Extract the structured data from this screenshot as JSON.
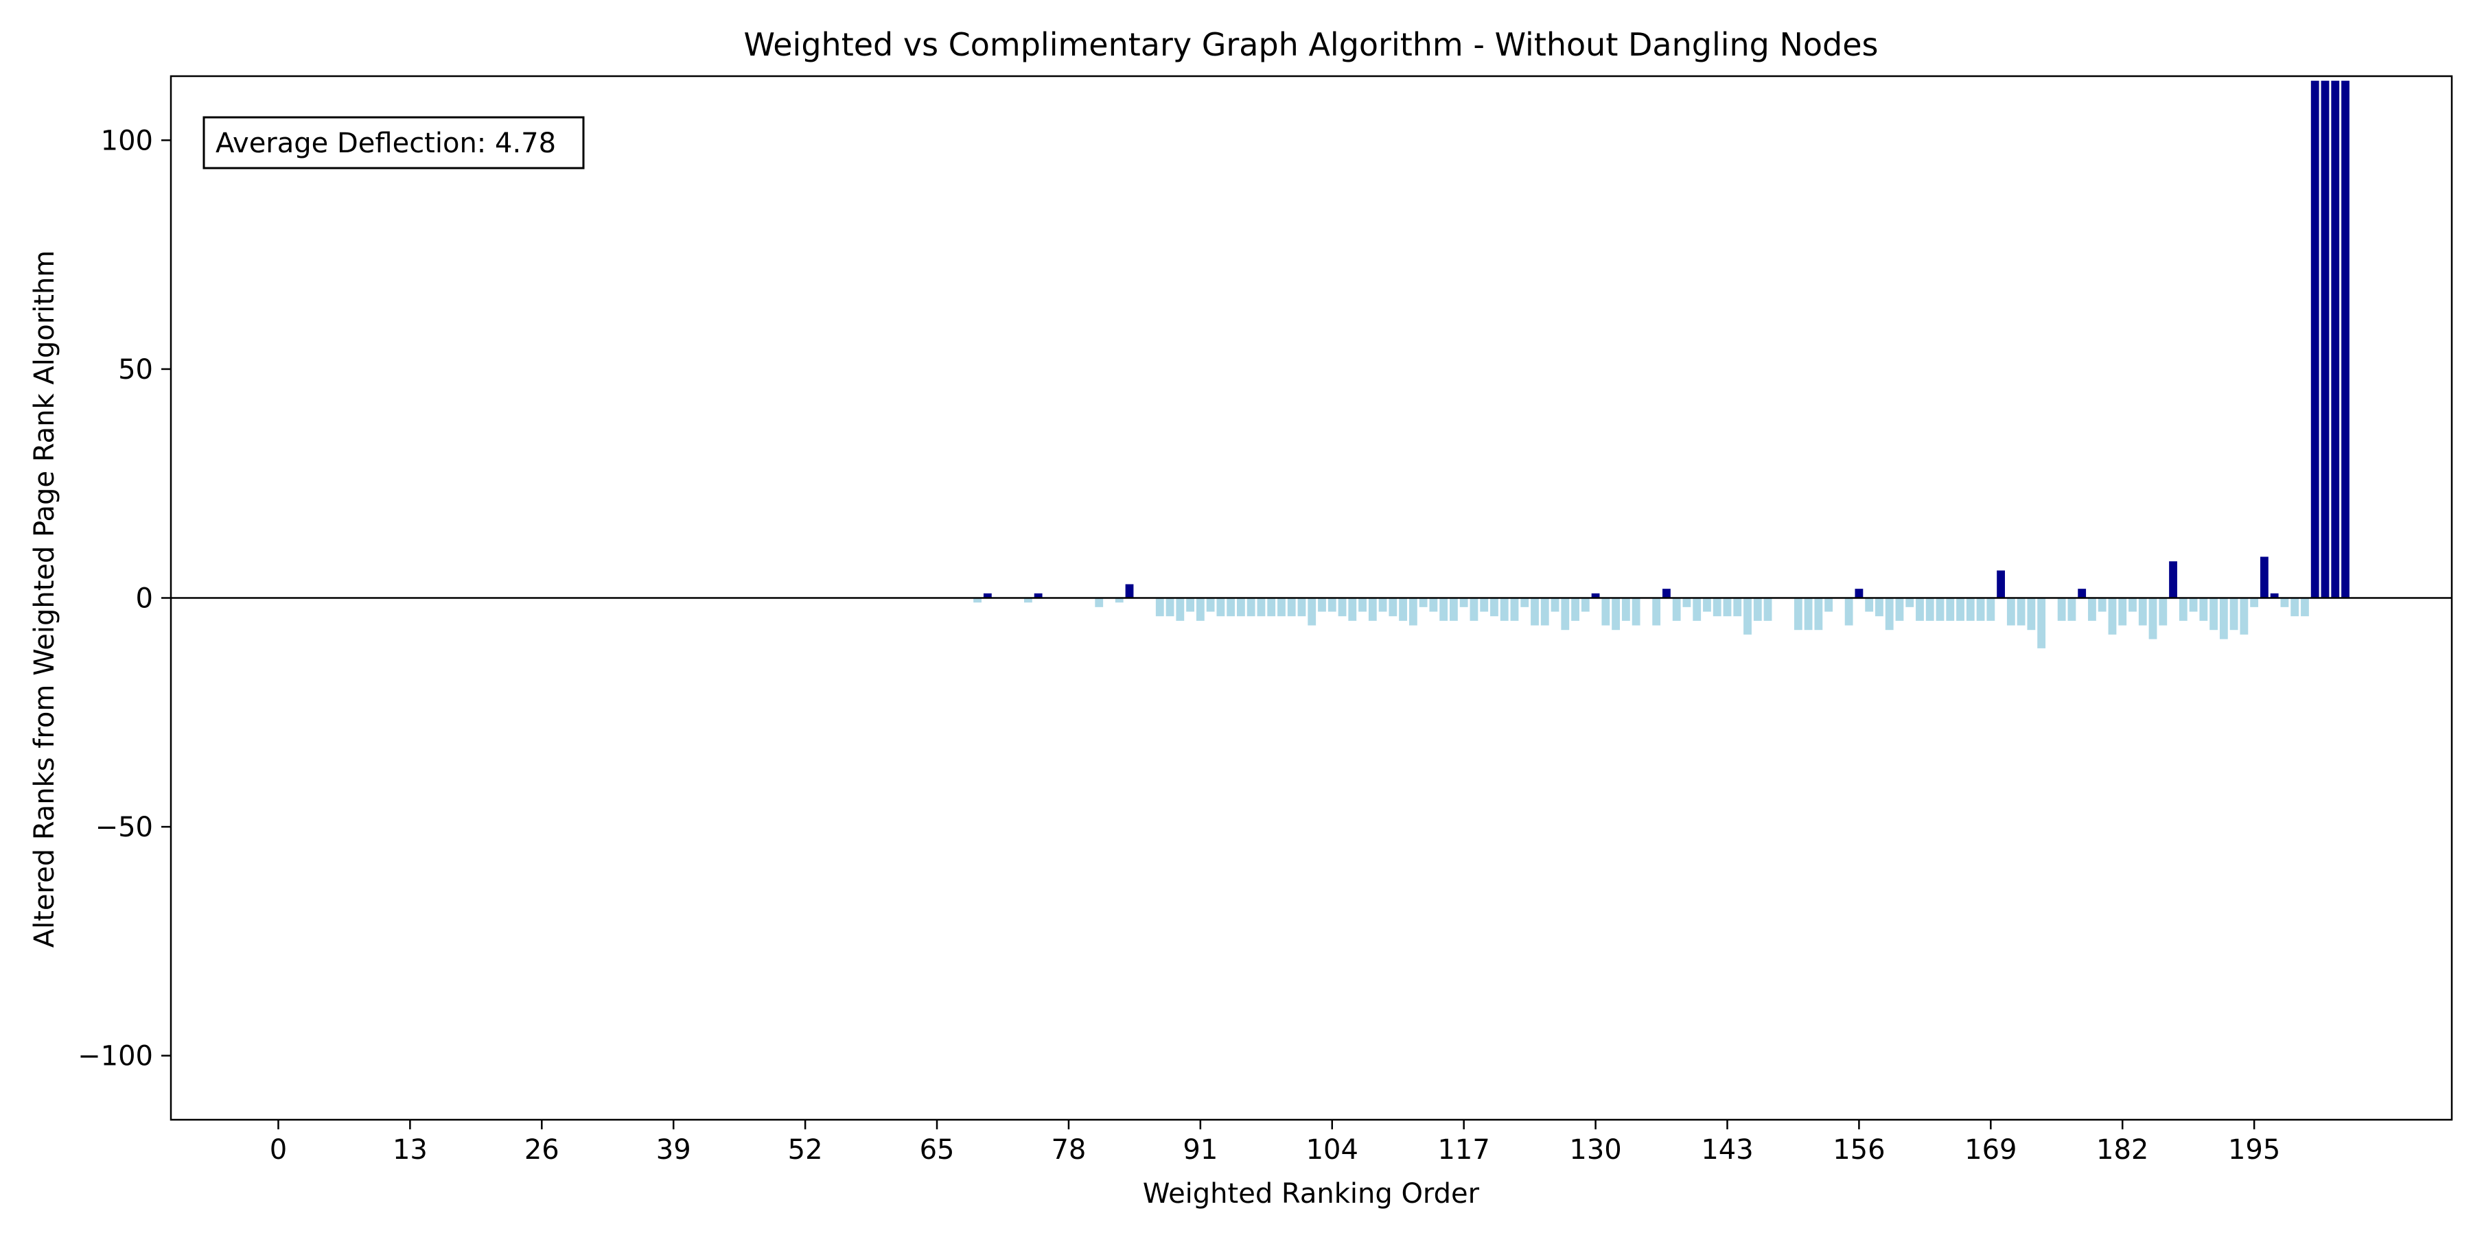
{
  "chart_data": {
    "type": "bar",
    "title": "Weighted vs Complimentary Graph Algorithm - Without Dangling Nodes",
    "xlabel": "Weighted Ranking Order",
    "ylabel": "Altered Ranks from Weighted Page Rank Algorithm",
    "xlim": [
      -10.6,
      214.5
    ],
    "ylim": [
      -114,
      114
    ],
    "xticks": [
      0,
      13,
      26,
      39,
      52,
      65,
      78,
      91,
      104,
      117,
      130,
      143,
      156,
      169,
      182,
      195
    ],
    "yticks": [
      100,
      50,
      0,
      -50,
      -100
    ],
    "ytick_labels": [
      "100",
      "50",
      "0",
      "−50",
      "−100"
    ],
    "grid": false,
    "annotation": "Average Deflection: 4.78",
    "colors": {
      "positive": "#00008b",
      "negative": "#add8e6",
      "zero_line": "#000000"
    },
    "x_start": 0,
    "values": [
      0,
      0,
      0,
      0,
      0,
      0,
      0,
      0,
      0,
      0,
      0,
      0,
      0,
      0,
      0,
      0,
      0,
      0,
      0,
      0,
      0,
      0,
      0,
      0,
      0,
      0,
      0,
      0,
      0,
      0,
      0,
      0,
      0,
      0,
      0,
      0,
      0,
      0,
      0,
      0,
      0,
      0,
      0,
      0,
      0,
      0,
      0,
      0,
      0,
      0,
      0,
      0,
      0,
      0,
      0,
      0,
      0,
      0,
      0,
      0,
      0,
      0,
      0,
      0,
      0,
      0,
      0,
      0,
      0,
      -1,
      1,
      0,
      0,
      0,
      -1,
      1,
      0,
      0,
      0,
      0,
      0,
      -2,
      0,
      -1,
      3,
      0,
      0,
      -4,
      -4,
      -5,
      -3,
      -5,
      -3,
      -4,
      -4,
      -4,
      -4,
      -4,
      -4,
      -4,
      -4,
      -4,
      -6,
      -3,
      -3,
      -4,
      -5,
      -3,
      -5,
      -3,
      -4,
      -5,
      -6,
      -2,
      -3,
      -5,
      -5,
      -2,
      -5,
      -3,
      -4,
      -5,
      -5,
      -2,
      -6,
      -6,
      -3,
      -7,
      -5,
      -3,
      1,
      -6,
      -7,
      -5,
      -6,
      0,
      -6,
      2,
      -5,
      -2,
      -5,
      -3,
      -4,
      -4,
      -4,
      -8,
      -5,
      -5,
      0,
      0,
      -7,
      -7,
      -7,
      -3,
      0,
      -6,
      2,
      -3,
      -4,
      -7,
      -5,
      -2,
      -5,
      -5,
      -5,
      -5,
      -5,
      -5,
      -5,
      -5,
      6,
      -6,
      -6,
      -7,
      -11,
      0,
      -5,
      -5,
      2,
      -5,
      -3,
      -8,
      -6,
      -3,
      -6,
      -9,
      -6,
      8,
      -5,
      -3,
      -5,
      -7,
      -9,
      -7,
      -8,
      -2,
      9,
      1,
      -2,
      -4,
      -4,
      113,
      113,
      113,
      113
    ]
  }
}
